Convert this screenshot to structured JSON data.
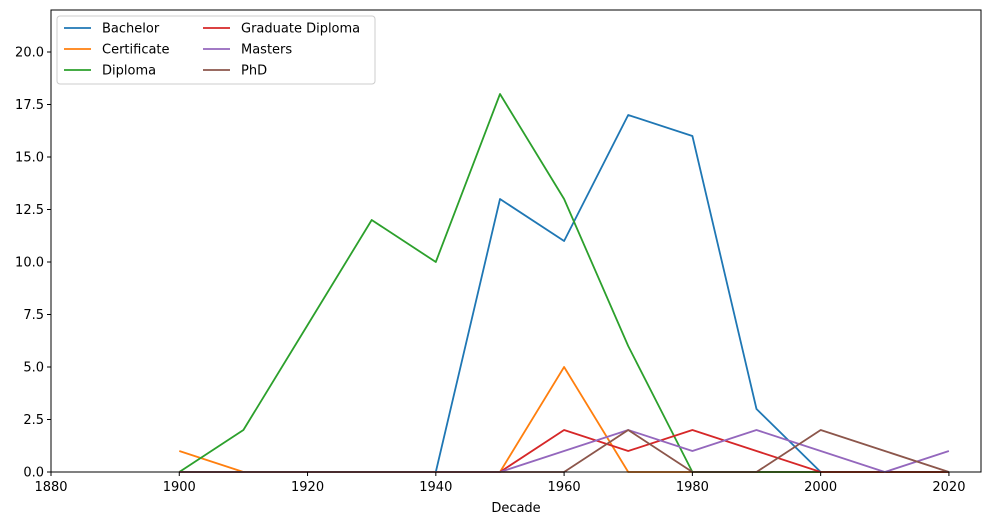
{
  "chart_data": {
    "type": "line",
    "title": "",
    "xlabel": "Decade",
    "ylabel": "",
    "xlim": [
      1880,
      2025
    ],
    "ylim": [
      0,
      22
    ],
    "xticks": [
      1880,
      1900,
      1920,
      1940,
      1960,
      1980,
      2000,
      2020
    ],
    "yticks": [
      0.0,
      2.5,
      5.0,
      7.5,
      10.0,
      12.5,
      15.0,
      17.5,
      20.0
    ],
    "xtick_labels": [
      "1880",
      "1900",
      "1920",
      "1940",
      "1960",
      "1980",
      "2000",
      "2020"
    ],
    "ytick_labels": [
      "0.0",
      "2.5",
      "5.0",
      "7.5",
      "10.0",
      "12.5",
      "15.0",
      "17.5",
      "20.0"
    ],
    "grid": false,
    "legend_position": "top-left",
    "x": [
      1900,
      1910,
      1920,
      1930,
      1940,
      1950,
      1960,
      1970,
      1980,
      1990,
      2000,
      2010,
      2020
    ],
    "series": [
      {
        "name": "Bachelor",
        "color": "#1f77b4",
        "values": [
          0,
          0,
          0,
          0,
          0,
          13,
          11,
          17,
          16,
          3,
          0,
          0,
          0
        ]
      },
      {
        "name": "Certificate",
        "color": "#ff7f0e",
        "values": [
          1,
          0,
          0,
          0,
          0,
          0,
          5,
          0,
          0,
          0,
          0,
          0,
          0
        ]
      },
      {
        "name": "Diploma",
        "color": "#2ca02c",
        "values": [
          0,
          2,
          7,
          12,
          10,
          18,
          13,
          6,
          0,
          0,
          0,
          0,
          0
        ]
      },
      {
        "name": "Graduate Diploma",
        "color": "#d62728",
        "values": [
          0,
          0,
          0,
          0,
          0,
          0,
          2,
          1,
          2,
          1,
          0,
          0,
          0
        ]
      },
      {
        "name": "Masters",
        "color": "#9467bd",
        "values": [
          0,
          0,
          0,
          0,
          0,
          0,
          1,
          2,
          1,
          2,
          1,
          0,
          1
        ]
      },
      {
        "name": "PhD",
        "color": "#8c564b",
        "values": [
          0,
          0,
          0,
          0,
          0,
          0,
          0,
          2,
          0,
          0,
          2,
          1,
          0
        ]
      }
    ]
  }
}
